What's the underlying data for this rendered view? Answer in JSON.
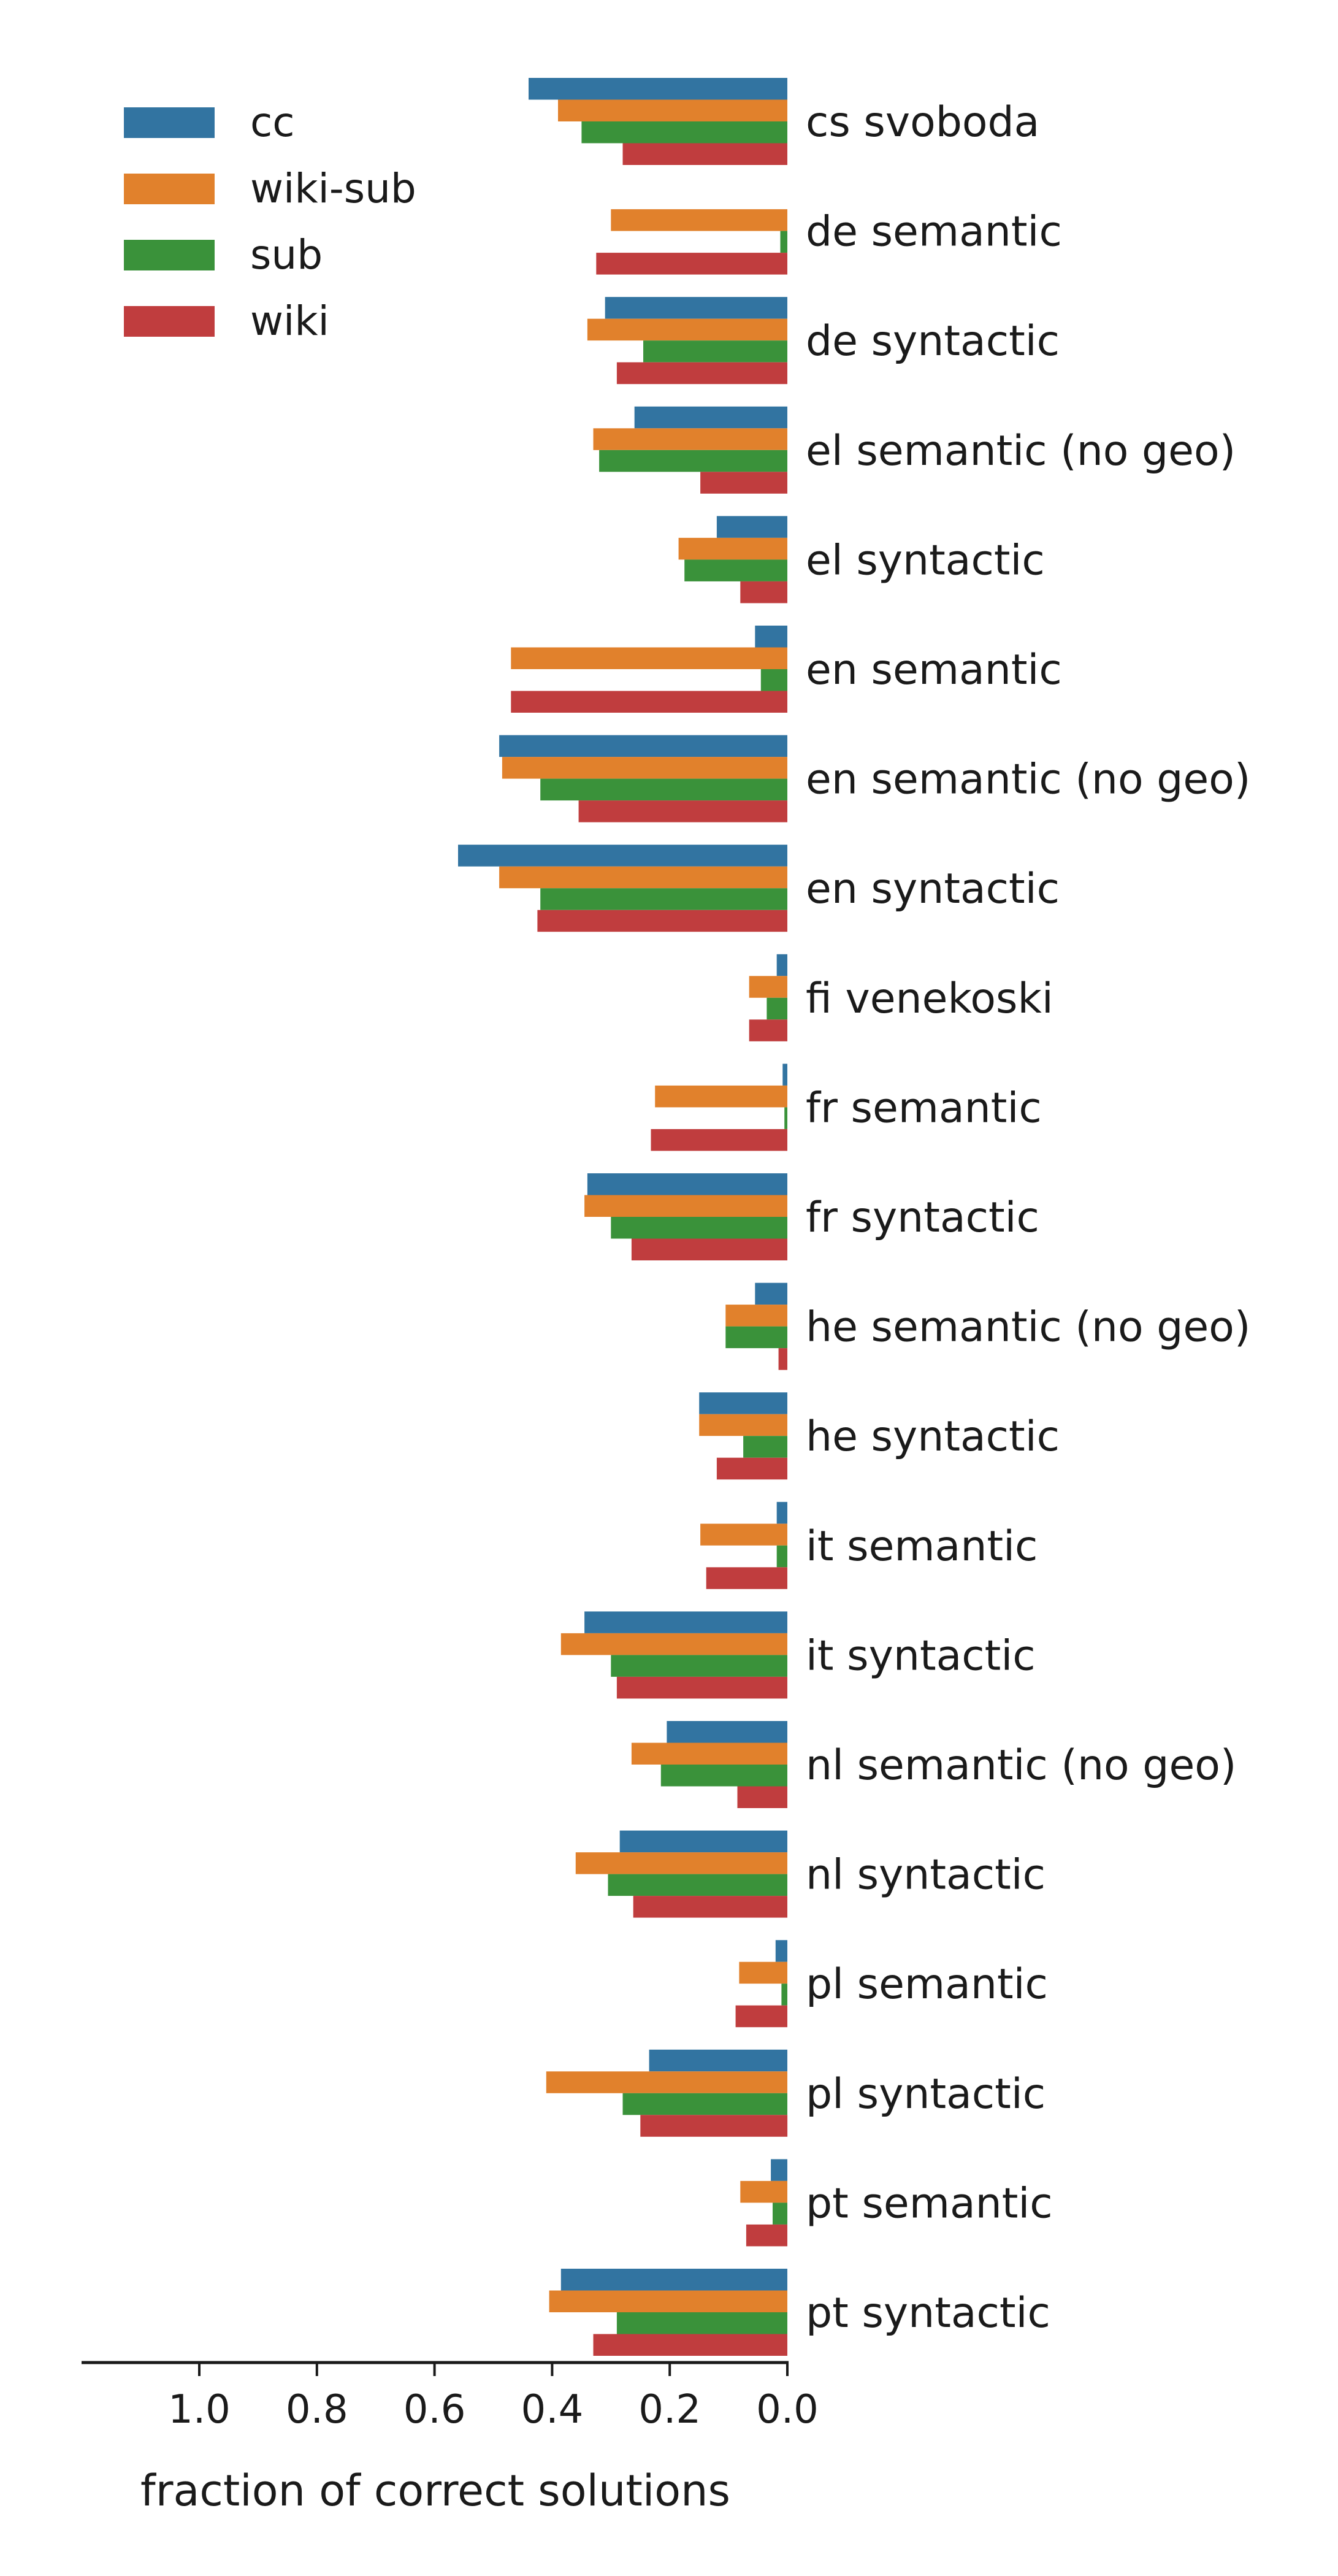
{
  "chart_data": {
    "type": "bar",
    "orientation": "horizontal",
    "x_direction": "reversed",
    "xlabel": "fraction of correct solutions",
    "xlim": [
      1.2,
      0.0
    ],
    "xticks": [
      1.0,
      0.8,
      0.6,
      0.4,
      0.2,
      0.0
    ],
    "xtick_labels": [
      "1.0",
      "0.8",
      "0.6",
      "0.4",
      "0.2",
      "0.0"
    ],
    "grid": false,
    "legend_position": "top-left",
    "categories": [
      "cs svoboda",
      "de semantic",
      "de syntactic",
      "el semantic (no geo)",
      "el syntactic",
      "en semantic",
      "en semantic (no geo)",
      "en syntactic",
      "fi venekoski",
      "fr semantic",
      "fr syntactic",
      "he semantic (no geo)",
      "he syntactic",
      "it semantic",
      "it syntactic",
      "nl semantic (no geo)",
      "nl syntactic",
      "pl semantic",
      "pl syntactic",
      "pt semantic",
      "pt syntactic"
    ],
    "series": [
      {
        "name": "cc",
        "color": "#3274a1",
        "values": [
          0.44,
          0.0,
          0.31,
          0.26,
          0.12,
          0.055,
          0.49,
          0.56,
          0.018,
          0.008,
          0.34,
          0.055,
          0.15,
          0.018,
          0.345,
          0.205,
          0.285,
          0.02,
          0.235,
          0.028,
          0.385
        ]
      },
      {
        "name": "wiki-sub",
        "color": "#e1812c",
        "values": [
          0.39,
          0.3,
          0.34,
          0.33,
          0.185,
          0.47,
          0.485,
          0.49,
          0.065,
          0.225,
          0.345,
          0.105,
          0.15,
          0.148,
          0.385,
          0.265,
          0.36,
          0.082,
          0.41,
          0.08,
          0.405
        ]
      },
      {
        "name": "sub",
        "color": "#3a923a",
        "values": [
          0.35,
          0.012,
          0.245,
          0.32,
          0.175,
          0.045,
          0.42,
          0.42,
          0.035,
          0.005,
          0.3,
          0.105,
          0.075,
          0.018,
          0.3,
          0.215,
          0.305,
          0.01,
          0.28,
          0.025,
          0.29
        ]
      },
      {
        "name": "wiki",
        "color": "#c03d3e",
        "values": [
          0.28,
          0.325,
          0.29,
          0.148,
          0.08,
          0.47,
          0.355,
          0.425,
          0.065,
          0.232,
          0.265,
          0.015,
          0.12,
          0.138,
          0.29,
          0.085,
          0.262,
          0.088,
          0.25,
          0.07,
          0.33
        ]
      }
    ]
  }
}
